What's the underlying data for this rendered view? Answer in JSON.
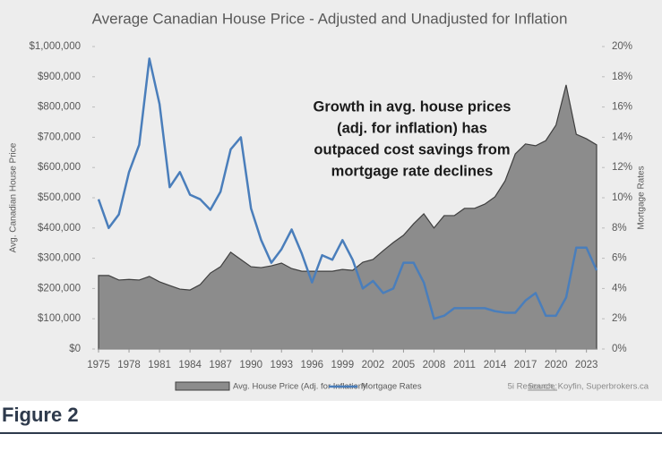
{
  "caption": "Figure 2",
  "chart_data": {
    "type": "area-line",
    "title": "Average Canadian House Price - Adjusted and Unadjusted for Inflation",
    "ylabel": "Avg. Canadian House Price",
    "y2label": "Mortgage Rates",
    "annotation": [
      "Growth in avg. house prices",
      "(adj. for inflation) has",
      "outpaced cost savings from",
      "mortgage rate declines"
    ],
    "source_label": "Source:",
    "source": "5i Research, Koyfin, Superbrokers.ca",
    "x": [
      1975,
      1976,
      1977,
      1978,
      1979,
      1980,
      1981,
      1982,
      1983,
      1984,
      1985,
      1986,
      1987,
      1988,
      1989,
      1990,
      1991,
      1992,
      1993,
      1994,
      1995,
      1996,
      1997,
      1998,
      1999,
      2000,
      2001,
      2002,
      2003,
      2004,
      2005,
      2006,
      2007,
      2008,
      2009,
      2010,
      2011,
      2012,
      2013,
      2014,
      2015,
      2016,
      2017,
      2018,
      2019,
      2020,
      2021,
      2022,
      2023,
      2024
    ],
    "xlim": [
      1975,
      2024
    ],
    "xticks": [
      1975,
      1978,
      1981,
      1984,
      1987,
      1990,
      1993,
      1996,
      1999,
      2002,
      2005,
      2008,
      2011,
      2014,
      2017,
      2020,
      2023
    ],
    "ylim": [
      0,
      1000000
    ],
    "yticks": [
      {
        "value": 0,
        "label": "$0"
      },
      {
        "value": 100000,
        "label": "$100,000"
      },
      {
        "value": 200000,
        "label": "$200,000"
      },
      {
        "value": 300000,
        "label": "$300,000"
      },
      {
        "value": 400000,
        "label": "$400,000"
      },
      {
        "value": 500000,
        "label": "$500,000"
      },
      {
        "value": 600000,
        "label": "$600,000"
      },
      {
        "value": 700000,
        "label": "$700,000"
      },
      {
        "value": 800000,
        "label": "$800,000"
      },
      {
        "value": 900000,
        "label": "$900,000"
      },
      {
        "value": 1000000,
        "label": "$1,000,000"
      }
    ],
    "y2lim": [
      0,
      20
    ],
    "y2ticks": [
      {
        "value": 0,
        "label": "0%"
      },
      {
        "value": 2,
        "label": "2%"
      },
      {
        "value": 4,
        "label": "4%"
      },
      {
        "value": 6,
        "label": "6%"
      },
      {
        "value": 8,
        "label": "8%"
      },
      {
        "value": 10,
        "label": "10%"
      },
      {
        "value": 12,
        "label": "12%"
      },
      {
        "value": 14,
        "label": "14%"
      },
      {
        "value": 16,
        "label": "16%"
      },
      {
        "value": 18,
        "label": "18%"
      },
      {
        "value": 20,
        "label": "20%"
      }
    ],
    "series": [
      {
        "name": "Avg. House Price (Adj. for Inflation)",
        "kind": "area",
        "color": "#8c8c8c",
        "values": [
          243000,
          243000,
          228000,
          230000,
          228000,
          240000,
          222000,
          210000,
          198000,
          195000,
          213000,
          251000,
          272000,
          320000,
          296000,
          272000,
          269000,
          275000,
          284000,
          266000,
          257000,
          257000,
          257000,
          257000,
          263000,
          260000,
          287000,
          296000,
          325000,
          352000,
          376000,
          414000,
          447000,
          400000,
          441000,
          441000,
          465000,
          465000,
          479000,
          503000,
          556000,
          645000,
          678000,
          672000,
          689000,
          740000,
          873000,
          710000,
          695000,
          675000
        ]
      },
      {
        "name": "Mortgage Rates",
        "kind": "line",
        "axis": "y2",
        "color": "#4a7ebb",
        "values": [
          9.9,
          8.0,
          8.9,
          11.7,
          13.5,
          19.2,
          16.2,
          10.7,
          11.7,
          10.2,
          9.9,
          9.2,
          10.4,
          13.2,
          14.0,
          9.3,
          7.2,
          5.7,
          6.6,
          7.9,
          6.3,
          4.4,
          6.2,
          5.9,
          7.2,
          5.9,
          4.0,
          4.5,
          3.7,
          4.0,
          5.7,
          5.7,
          4.4,
          2.0,
          2.2,
          2.7,
          2.7,
          2.7,
          2.7,
          2.5,
          2.4,
          2.4,
          3.2,
          3.7,
          2.2,
          2.2,
          3.4,
          6.7,
          6.7,
          5.2
        ]
      }
    ]
  }
}
